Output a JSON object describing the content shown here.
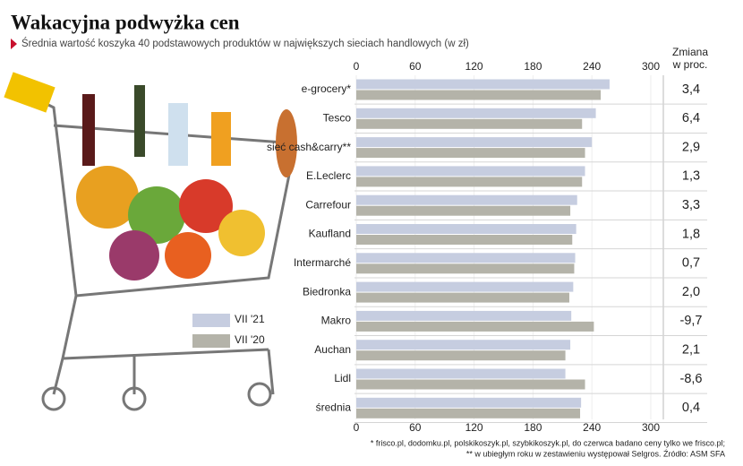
{
  "chart_data": {
    "type": "bar",
    "orientation": "horizontal",
    "title": "Wakacyjna podwyżka cen",
    "subtitle": "Średnia wartość koszyka 40 podstawowych produktów w największych sieciach handlowych (w zł)",
    "categories": [
      "e-grocery*",
      "Tesco",
      "sieć cash&carry**",
      "E.Leclerc",
      "Carrefour",
      "Kaufland",
      "Intermarché",
      "Biedronka",
      "Makro",
      "Auchan",
      "Lidl",
      "średnia"
    ],
    "series": [
      {
        "name": "VII '21",
        "color": "#c6cde0",
        "values": [
          258,
          244,
          240,
          233,
          225,
          224,
          223,
          221,
          219,
          218,
          213,
          229
        ]
      },
      {
        "name": "VII '20",
        "color": "#b4b3a9",
        "values": [
          249,
          230,
          233,
          230,
          218,
          220,
          222,
          217,
          242,
          213,
          233,
          228
        ]
      }
    ],
    "xlim": [
      0,
      300
    ],
    "xticks": [
      0,
      60,
      120,
      180,
      240,
      300
    ],
    "change": {
      "header": [
        "Zmiana",
        "w proc."
      ],
      "values": [
        3.4,
        6.4,
        2.9,
        1.3,
        3.3,
        1.8,
        0.7,
        2.0,
        -9.7,
        2.1,
        -8.6,
        0.4
      ],
      "value_labels": [
        "3,4",
        "6,4",
        "2,9",
        "1,3",
        "3,3",
        "1,8",
        "0,7",
        "2,0",
        "-9,7",
        "2,1",
        "-8,6",
        "0,4"
      ],
      "colors": {
        "up": "#c8102e",
        "down": "#2b7f9c"
      }
    },
    "footnotes": [
      "* frisco.pl, dodomku.pl, polskikoszyk.pl, szybkikoszyk.pl, do czerwca badano ceny tylko we frisco.pl;",
      "** w ubiegłym roku w zestawieniu występował Selgros. Źródło: ASM SFA"
    ]
  }
}
